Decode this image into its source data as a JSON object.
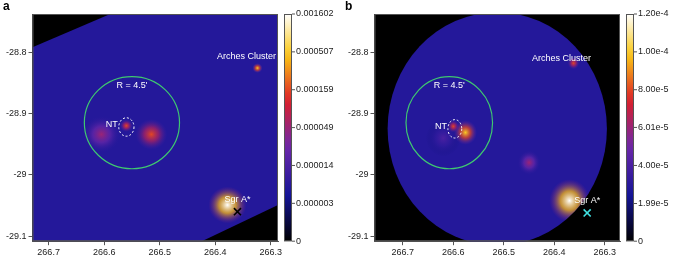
{
  "chart_data": [
    {
      "type": "image",
      "panel_label": "a",
      "xlim": [
        266.729,
        266.287
      ],
      "xticks": [
        266.7,
        266.6,
        266.5,
        266.4,
        266.3
      ],
      "ylim": [
        -29.108,
        -28.738
      ],
      "yticks": [
        -28.8,
        -28.9,
        -29.0,
        -29.1
      ],
      "field_of_view": {
        "polygon": [
          [
            266.729,
            -28.792
          ],
          [
            266.589,
            -28.738
          ],
          [
            266.287,
            -28.738
          ],
          [
            266.287,
            -29.049
          ],
          [
            266.424,
            -29.108
          ],
          [
            266.729,
            -29.108
          ]
        ]
      },
      "sources": [
        {
          "x": 266.605,
          "y": -28.934,
          "value": 4.9e-05,
          "radius": 0.03
        },
        {
          "x": 266.515,
          "y": -28.934,
          "value": 0.000159,
          "radius": 0.025
        },
        {
          "x": 266.56,
          "y": -28.92,
          "value": 0.000159,
          "radius": 0.01
        },
        {
          "x": 266.324,
          "y": -28.826,
          "value": 0.000507,
          "radius": 0.008
        },
        {
          "x": 266.378,
          "y": -29.049,
          "value": 0.001602,
          "radius": 0.03
        }
      ],
      "annotations": [
        {
          "type": "circle",
          "x": 266.55,
          "y": -28.915,
          "radius": 0.075,
          "text": "R = 4.5'",
          "color": "#3fc870"
        },
        {
          "type": "ellipse",
          "x": 266.56,
          "y": -28.922,
          "rx": 0.012,
          "ry": 0.015,
          "text": "NT",
          "color": "#ffffff"
        },
        {
          "type": "text",
          "x": 266.333,
          "y": -28.808,
          "text": "Arches Cluster",
          "color": "#ffffff"
        },
        {
          "type": "marker",
          "marker": "x",
          "x": 266.36,
          "y": -29.06,
          "text": "Sgr A*",
          "color": "#000000"
        }
      ],
      "colorbar": {
        "log": true,
        "range": [
          0,
          0.001602
        ],
        "ticks": [
          0,
          3e-06,
          1.4e-05,
          4.9e-05,
          0.000159,
          0.000507,
          0.001602
        ]
      }
    },
    {
      "type": "image",
      "panel_label": "b",
      "xlim": [
        266.756,
        266.27
      ],
      "xticks": [
        266.7,
        266.6,
        266.5,
        266.4,
        266.3
      ],
      "ylim": [
        -29.108,
        -28.738
      ],
      "yticks": [
        -28.8,
        -28.9,
        -29.0,
        -29.1
      ],
      "field_of_view": {
        "circle": {
          "center": [
            266.513,
            -28.925
          ],
          "radius": 0.19
        }
      },
      "sources": [
        {
          "x": 266.62,
          "y": -28.94,
          "value": 4e-05,
          "radius": 0.03
        },
        {
          "x": 266.576,
          "y": -28.931,
          "value": 0.0001,
          "radius": 0.02
        },
        {
          "x": 266.6,
          "y": -28.921,
          "value": 8e-05,
          "radius": 0.01
        },
        {
          "x": 266.362,
          "y": -28.818,
          "value": 8e-05,
          "radius": 0.01
        },
        {
          "x": 266.45,
          "y": -28.98,
          "value": 6e-05,
          "radius": 0.02
        },
        {
          "x": 266.37,
          "y": -29.042,
          "value": 0.00012,
          "radius": 0.035
        }
      ],
      "annotations": [
        {
          "type": "circle",
          "x": 266.608,
          "y": -28.915,
          "radius": 0.075,
          "text": "R = 4.5'",
          "color": "#3fc870"
        },
        {
          "type": "ellipse",
          "x": 266.597,
          "y": -28.925,
          "rx": 0.012,
          "ry": 0.015,
          "text": "NT",
          "color": "#ffffff"
        },
        {
          "type": "text",
          "x": 266.386,
          "y": -28.81,
          "text": "Arches Cluster",
          "color": "#ffffff"
        },
        {
          "type": "marker",
          "marker": "x",
          "x": 266.335,
          "y": -29.062,
          "text": "Sgr A*",
          "color": "#40e0e0"
        }
      ],
      "colorbar": {
        "range": [
          0,
          0.00012
        ],
        "ticks": [
          0,
          {
            "value": 1.99e-05,
            "label": "1.99e-5"
          },
          {
            "value": 4e-05,
            "label": "4.00e-5"
          },
          {
            "value": 6.01e-05,
            "label": "6.01e-5"
          },
          {
            "value": 8e-05,
            "label": "8.00e-5"
          },
          {
            "value": 0.0001,
            "label": "1.00e-4"
          },
          {
            "value": 0.00012,
            "label": "1.20e-4"
          }
        ]
      }
    }
  ]
}
